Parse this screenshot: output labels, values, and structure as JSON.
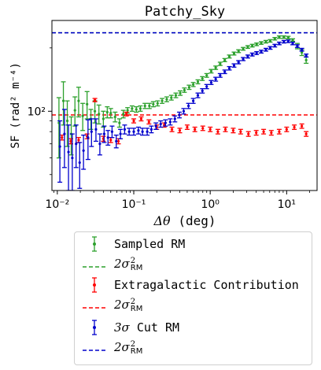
{
  "chart_data": {
    "type": "scatter",
    "title": "Patchy_Sky",
    "xlabel": "Δθ (deg)",
    "ylabel": "SF (rad² m⁻⁴)",
    "xscale": "log",
    "yscale": "log",
    "xlim": [
      0.0085,
      25
    ],
    "ylim": [
      42,
      270
    ],
    "x_ticks": [
      0.01,
      0.1,
      1,
      10
    ],
    "x_tick_labels": [
      "10⁻²",
      "10⁻¹",
      "10⁰",
      "10¹"
    ],
    "y_ticks": [
      100
    ],
    "y_tick_labels": [
      "10²"
    ],
    "grid": false,
    "legend_placement": "below-plot",
    "series": [
      {
        "name": "Sampled RM",
        "color": "#2ca02c",
        "kind": "errorbar",
        "x": [
          0.0105,
          0.012,
          0.0135,
          0.0152,
          0.017,
          0.019,
          0.0215,
          0.0245,
          0.0275,
          0.031,
          0.035,
          0.04,
          0.045,
          0.05,
          0.057,
          0.065,
          0.073,
          0.083,
          0.095,
          0.108,
          0.122,
          0.14,
          0.16,
          0.18,
          0.205,
          0.235,
          0.27,
          0.31,
          0.355,
          0.405,
          0.46,
          0.53,
          0.6,
          0.69,
          0.79,
          0.9,
          1.03,
          1.18,
          1.35,
          1.55,
          1.78,
          2.05,
          2.35,
          2.7,
          3.1,
          3.55,
          4.05,
          4.65,
          5.35,
          6.1,
          7.0,
          8.0,
          9.2,
          10.5,
          12.0,
          13.8,
          15.8,
          18.0
        ],
        "y": [
          88,
          112,
          90,
          78,
          101,
          112,
          95,
          108,
          92,
          100,
          97,
          92,
          99,
          98,
          94,
          88,
          97,
          101,
          103,
          102,
          103,
          106,
          106,
          108,
          109,
          112,
          114,
          116,
          119,
          122,
          126,
          130,
          134,
          138,
          143,
          148,
          155,
          161,
          168,
          175,
          182,
          188,
          193,
          198,
          202,
          205,
          208,
          211,
          214,
          216,
          221,
          225,
          225,
          224,
          218,
          204,
          190,
          175
        ],
        "yerr": [
          28,
          26,
          22,
          16,
          16,
          18,
          14,
          16,
          10,
          12,
          10,
          8,
          6,
          5,
          5,
          4,
          4,
          3,
          3,
          3,
          3,
          3,
          3,
          3,
          3,
          3,
          3,
          3,
          3,
          3,
          3,
          3,
          3,
          3,
          3,
          3,
          3,
          3,
          3,
          3,
          3,
          3,
          3,
          3,
          3,
          3,
          3,
          3,
          3,
          3,
          3,
          3,
          3,
          3,
          3,
          6,
          6,
          6
        ]
      },
      {
        "name": "2σ²RM",
        "color": "#2ca02c",
        "kind": "hline",
        "y": 236
      },
      {
        "name": "Extragalactic Contribution",
        "color": "#ff0000",
        "kind": "errorbar",
        "x": [
          0.0115,
          0.015,
          0.019,
          0.0245,
          0.031,
          0.04,
          0.05,
          0.063,
          0.08,
          0.1,
          0.125,
          0.158,
          0.2,
          0.25,
          0.316,
          0.4,
          0.5,
          0.63,
          0.8,
          1.0,
          1.26,
          1.58,
          2.0,
          2.5,
          3.16,
          4.0,
          5.0,
          6.3,
          8.0,
          10.0,
          12.6,
          15.8,
          18.0
        ],
        "y": [
          75,
          72,
          73,
          76,
          113,
          74,
          73,
          72,
          97,
          90,
          92,
          89,
          84,
          86,
          82,
          81,
          84,
          82,
          83,
          82,
          80,
          82,
          81,
          80,
          78,
          79,
          80,
          79,
          80,
          82,
          84,
          85,
          78
        ],
        "yerr": [
          2,
          2,
          2,
          2,
          2,
          2,
          2,
          2,
          2,
          2,
          2,
          2,
          2,
          2,
          2,
          2,
          2,
          2,
          2,
          2,
          2,
          2,
          2,
          2,
          2,
          2,
          2,
          2,
          2,
          2,
          2,
          2,
          2
        ]
      },
      {
        "name": "2σ²RM",
        "color": "#ff0000",
        "kind": "hline",
        "y": 96
      },
      {
        "name": "3σ Cut RM",
        "color": "#0000cc",
        "kind": "errorbar",
        "x": [
          0.0108,
          0.0124,
          0.014,
          0.0157,
          0.0176,
          0.0196,
          0.022,
          0.0252,
          0.028,
          0.032,
          0.036,
          0.041,
          0.046,
          0.052,
          0.059,
          0.067,
          0.076,
          0.087,
          0.1,
          0.115,
          0.13,
          0.15,
          0.17,
          0.195,
          0.225,
          0.26,
          0.3,
          0.345,
          0.395,
          0.45,
          0.52,
          0.6,
          0.69,
          0.79,
          0.9,
          1.03,
          1.18,
          1.35,
          1.55,
          1.78,
          2.05,
          2.35,
          2.7,
          3.1,
          3.55,
          4.05,
          4.65,
          5.35,
          6.1,
          7.0,
          8.0,
          9.2,
          10.5,
          12.0,
          13.8,
          15.8,
          18.0
        ],
        "y": [
          68,
          78,
          64,
          60,
          70,
          57,
          65,
          75,
          80,
          82,
          70,
          78,
          75,
          80,
          72,
          78,
          82,
          80,
          80,
          81,
          80,
          80,
          82,
          85,
          87,
          88,
          89,
          92,
          96,
          100,
          106,
          112,
          119,
          125,
          131,
          137,
          142,
          148,
          154,
          160,
          165,
          171,
          177,
          182,
          186,
          189,
          192,
          196,
          200,
          205,
          210,
          214,
          215,
          210,
          204,
          196,
          184
        ],
        "yerr": [
          22,
          24,
          22,
          18,
          16,
          14,
          12,
          16,
          12,
          10,
          8,
          7,
          6,
          5,
          5,
          4,
          4,
          3,
          3,
          3,
          3,
          3,
          3,
          3,
          3,
          3,
          3,
          3,
          3,
          3,
          3,
          3,
          3,
          3,
          3,
          3,
          3,
          3,
          3,
          3,
          3,
          3,
          3,
          3,
          3,
          3,
          3,
          3,
          3,
          3,
          3,
          3,
          3,
          3,
          3,
          3,
          3
        ]
      },
      {
        "name": "2σ²RM",
        "color": "#0000cc",
        "kind": "hline",
        "y": 236
      }
    ]
  },
  "legend": {
    "items": [
      {
        "label": "Sampled RM",
        "math": false,
        "handle": "errorbar",
        "color": "#2ca02c"
      },
      {
        "label_prefix": "2",
        "label_sym": "σ",
        "label_sup": "2",
        "label_sub": "RM",
        "math": true,
        "handle": "dashed",
        "color": "#2ca02c"
      },
      {
        "label": "Extragalactic Contribution",
        "math": false,
        "handle": "errorbar",
        "color": "#ff0000"
      },
      {
        "label_prefix": "2",
        "label_sym": "σ",
        "label_sup": "2",
        "label_sub": "RM",
        "math": true,
        "handle": "dashed",
        "color": "#ff0000"
      },
      {
        "label_prefix": "3",
        "label_sym": "σ",
        "label_rest": " Cut RM",
        "math": "partial",
        "handle": "errorbar",
        "color": "#0000cc"
      },
      {
        "label_prefix": "2",
        "label_sym": "σ",
        "label_sup": "2",
        "label_sub": "RM",
        "math": true,
        "handle": "dashed",
        "color": "#0000cc"
      }
    ]
  }
}
